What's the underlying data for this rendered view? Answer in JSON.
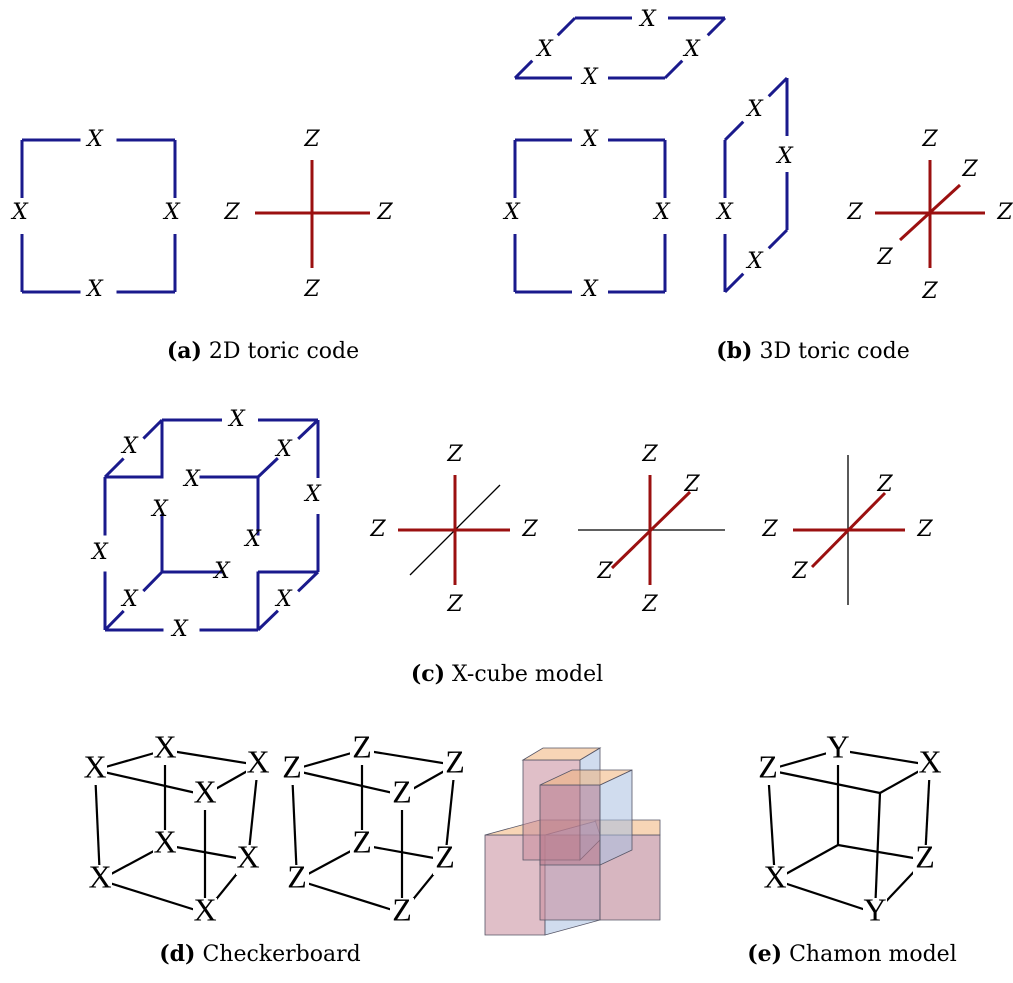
{
  "panels": [
    {
      "tag": "(a)",
      "caption": "2D toric code",
      "labels": [
        "X",
        "X",
        "X",
        "X",
        "Z",
        "Z",
        "Z",
        "Z"
      ]
    },
    {
      "tag": "(b)",
      "caption": "3D toric code",
      "labels": [
        "X",
        "X",
        "X",
        "X",
        "X",
        "X",
        "X",
        "X",
        "X",
        "X",
        "X",
        "X",
        "Z",
        "Z",
        "Z",
        "Z",
        "Z",
        "Z"
      ]
    },
    {
      "tag": "(c)",
      "caption": "X-cube model",
      "labels": [
        "X",
        "X",
        "X",
        "X",
        "X",
        "X",
        "X",
        "X",
        "X",
        "X",
        "X",
        "X",
        "Z",
        "Z",
        "Z",
        "Z",
        "Z",
        "Z",
        "Z",
        "Z",
        "Z",
        "Z",
        "Z",
        "Z"
      ]
    },
    {
      "tag": "(d)",
      "caption": "Checkerboard",
      "labels": [
        "X",
        "X",
        "X",
        "X",
        "X",
        "X",
        "X",
        "X",
        "Z",
        "Z",
        "Z",
        "Z",
        "Z",
        "Z",
        "Z",
        "Z"
      ]
    },
    {
      "tag": "(e)",
      "caption": "Chamon model",
      "labels": [
        "Z",
        "Y",
        "X",
        "Z",
        "X",
        "Y"
      ]
    }
  ]
}
